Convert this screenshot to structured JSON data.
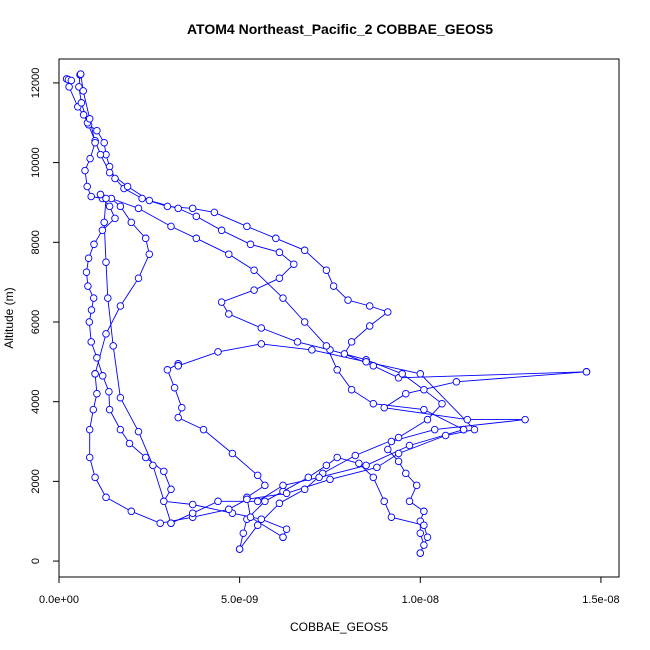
{
  "chart_data": {
    "type": "line",
    "title": "ATOM4 Northeast_Pacific_2 COBBAE_GEOS5",
    "xlabel": "COBBAE_GEOS5",
    "ylabel": "Altitude (m)",
    "xlim": [
      0,
      1.55e-08
    ],
    "ylim": [
      -400,
      12600
    ],
    "x_ticks": [
      0,
      5e-09,
      1e-08,
      1.5e-08
    ],
    "x_tick_labels": [
      "0.0e+00",
      "5.0e-09",
      "1.0e-08",
      "1.5e-08"
    ],
    "y_ticks": [
      0,
      2000,
      4000,
      6000,
      8000,
      10000,
      12000
    ],
    "y_tick_labels": [
      "0",
      "2000",
      "4000",
      "6000",
      "8000",
      "10000",
      "12000"
    ],
    "grid": false,
    "series_color": "#0000ff",
    "marker": "open-circle",
    "series": [
      {
        "points": [
          [
            2.1e-10,
            12100
          ],
          [
            2.6e-10,
            12080
          ],
          [
            3.4e-10,
            12060
          ],
          [
            2.8e-10,
            11900
          ],
          [
            5.2e-10,
            11400
          ],
          [
            6.8e-10,
            11200
          ],
          [
            8.2e-10,
            10950
          ],
          [
            1.05e-09,
            10800
          ],
          [
            1.25e-09,
            10500
          ],
          [
            1.3e-09,
            10200
          ],
          [
            1.4e-09,
            9900
          ],
          [
            1.55e-09,
            9600
          ],
          [
            1.8e-09,
            9350
          ],
          [
            2.3e-09,
            9100
          ],
          [
            3e-09,
            8900
          ],
          [
            3.7e-09,
            8850
          ],
          [
            4.3e-09,
            8750
          ],
          [
            5.2e-09,
            8400
          ],
          [
            6e-09,
            8100
          ],
          [
            6.8e-09,
            7800
          ],
          [
            7.4e-09,
            7300
          ],
          [
            7.6e-09,
            6900
          ],
          [
            8e-09,
            6550
          ],
          [
            8.6e-09,
            6400
          ],
          [
            9.1e-09,
            6250
          ],
          [
            8.6e-09,
            5900
          ],
          [
            8.1e-09,
            5500
          ],
          [
            7.9e-09,
            5200
          ],
          [
            8.7e-09,
            4900
          ],
          [
            9.4e-09,
            4600
          ],
          [
            1.46e-08,
            4750
          ]
        ]
      },
      {
        "points": [
          [
            1.46e-08,
            4750
          ],
          [
            1.1e-08,
            4500
          ],
          [
            9.6e-09,
            4200
          ],
          [
            9e-09,
            3850
          ],
          [
            1.13e-08,
            3550
          ],
          [
            1.29e-08,
            3550
          ],
          [
            1.04e-08,
            3300
          ],
          [
            9.2e-09,
            3000
          ],
          [
            9.1e-09,
            2800
          ],
          [
            9.4e-09,
            2500
          ],
          [
            9.6e-09,
            2200
          ],
          [
            9.9e-09,
            1900
          ],
          [
            9.7e-09,
            1500
          ],
          [
            1.01e-08,
            1250
          ],
          [
            1e-08,
            1000
          ],
          [
            1e-08,
            700
          ],
          [
            1.01e-08,
            400
          ],
          [
            1e-08,
            200
          ]
        ]
      },
      {
        "points": [
          [
            1e-08,
            200
          ],
          [
            1.02e-08,
            600
          ],
          [
            1.01e-08,
            900
          ],
          [
            9.2e-09,
            1100
          ],
          [
            9e-09,
            1500
          ],
          [
            8.7e-09,
            2100
          ],
          [
            8.3e-09,
            2450
          ],
          [
            7.7e-09,
            2600
          ],
          [
            7.4e-09,
            2400
          ],
          [
            6.9e-09,
            2100
          ],
          [
            6.2e-09,
            1750
          ],
          [
            5.7e-09,
            1500
          ],
          [
            5.2e-09,
            1050
          ],
          [
            5.1e-09,
            700
          ],
          [
            5e-09,
            300
          ]
        ]
      },
      {
        "points": [
          [
            5e-09,
            300
          ],
          [
            5.5e-09,
            900
          ],
          [
            6.1e-09,
            1450
          ],
          [
            6.8e-09,
            1800
          ],
          [
            7.3e-09,
            2200
          ],
          [
            8.2e-09,
            2650
          ],
          [
            9.4e-09,
            3100
          ],
          [
            1.02e-08,
            3550
          ],
          [
            1.06e-08,
            3950
          ],
          [
            1.01e-08,
            4300
          ],
          [
            9.5e-09,
            4700
          ],
          [
            8.5e-09,
            5050
          ],
          [
            7.5e-09,
            5300
          ],
          [
            6.6e-09,
            5500
          ],
          [
            5.6e-09,
            5850
          ],
          [
            4.7e-09,
            6200
          ],
          [
            4.5e-09,
            6500
          ],
          [
            5.4e-09,
            6800
          ],
          [
            6.1e-09,
            7100
          ],
          [
            6.5e-09,
            7450
          ],
          [
            6.1e-09,
            7750
          ],
          [
            5.3e-09,
            7950
          ],
          [
            4.5e-09,
            8300
          ],
          [
            3.8e-09,
            8650
          ],
          [
            3.3e-09,
            8850
          ],
          [
            2.5e-09,
            9050
          ],
          [
            1.9e-09,
            9400
          ],
          [
            1.4e-09,
            9750
          ],
          [
            1.15e-09,
            10200
          ],
          [
            1e-09,
            10550
          ],
          [
            7.9e-10,
            11000
          ],
          [
            6.2e-10,
            11500
          ],
          [
            5.5e-10,
            11900
          ],
          [
            5.8e-10,
            12200
          ],
          [
            6e-10,
            12220
          ]
        ]
      },
      {
        "points": [
          [
            6e-10,
            12220
          ],
          [
            6.7e-10,
            11800
          ],
          [
            8.5e-10,
            11100
          ],
          [
            1e-09,
            10500
          ],
          [
            8.6e-10,
            10100
          ],
          [
            7.2e-10,
            9800
          ],
          [
            7.8e-10,
            9400
          ],
          [
            8.9e-10,
            9150
          ],
          [
            1.2e-09,
            9100
          ],
          [
            1.4e-09,
            8900
          ],
          [
            1.55e-09,
            8600
          ],
          [
            1.2e-09,
            8300
          ],
          [
            9.7e-10,
            7950
          ],
          [
            8.2e-10,
            7600
          ],
          [
            7.6e-10,
            7250
          ],
          [
            8e-10,
            6900
          ],
          [
            9.6e-10,
            6600
          ],
          [
            9e-10,
            6300
          ],
          [
            8.4e-10,
            6000
          ],
          [
            8.9e-10,
            5500
          ],
          [
            1.05e-09,
            5100
          ],
          [
            1.21e-09,
            4650
          ],
          [
            1.38e-09,
            4250
          ],
          [
            1.4e-09,
            3800
          ],
          [
            1.7e-09,
            3300
          ],
          [
            1.95e-09,
            2950
          ],
          [
            2.4e-09,
            2600
          ],
          [
            2.9e-09,
            2250
          ],
          [
            3.1e-09,
            1800
          ],
          [
            2.9e-09,
            1500
          ],
          [
            3.7e-09,
            1420
          ],
          [
            4.8e-09,
            1200
          ],
          [
            5.6e-09,
            1050
          ],
          [
            6.3e-09,
            800
          ],
          [
            6.2e-09,
            600
          ]
        ]
      },
      {
        "points": [
          [
            6.2e-09,
            600
          ],
          [
            5.3e-09,
            1100
          ],
          [
            5.2e-09,
            1600
          ],
          [
            5.7e-09,
            1900
          ],
          [
            5.5e-09,
            2150
          ],
          [
            4.8e-09,
            2700
          ],
          [
            4e-09,
            3300
          ],
          [
            3.3e-09,
            3600
          ],
          [
            3.4e-09,
            3850
          ],
          [
            3.2e-09,
            4350
          ],
          [
            3e-09,
            4800
          ],
          [
            3.3e-09,
            4950
          ],
          [
            3.3e-09,
            4900
          ]
        ]
      },
      {
        "points": [
          [
            3.3e-09,
            4900
          ],
          [
            4.4e-09,
            5250
          ],
          [
            5.6e-09,
            5450
          ],
          [
            7e-09,
            5300
          ],
          [
            8.5e-09,
            5000
          ],
          [
            1e-08,
            4700
          ],
          [
            1.15e-08,
            3300
          ],
          [
            1.07e-08,
            3150
          ],
          [
            9.4e-09,
            2700
          ],
          [
            8.8e-09,
            2350
          ],
          [
            7.5e-09,
            2050
          ],
          [
            6.3e-09,
            1700
          ],
          [
            5.2e-09,
            1550
          ],
          [
            4.7e-09,
            1300
          ],
          [
            3.7e-09,
            1100
          ],
          [
            2.8e-09,
            950
          ],
          [
            2e-09,
            1250
          ],
          [
            1.3e-09,
            1600
          ],
          [
            1e-09,
            2100
          ],
          [
            8.5e-10,
            2600
          ],
          [
            8.5e-10,
            3300
          ],
          [
            9.5e-10,
            3800
          ],
          [
            1.05e-09,
            4200
          ],
          [
            1e-09,
            4700
          ]
        ]
      },
      {
        "points": [
          [
            1e-09,
            4700
          ],
          [
            1.3e-09,
            5700
          ],
          [
            1.7e-09,
            6400
          ],
          [
            2.2e-09,
            7100
          ],
          [
            2.5e-09,
            7700
          ],
          [
            2.4e-09,
            8100
          ],
          [
            2e-09,
            8500
          ],
          [
            1.7e-09,
            8900
          ],
          [
            1.45e-09,
            9100
          ],
          [
            1.15e-09,
            9200
          ]
        ]
      },
      {
        "points": [
          [
            1.15e-09,
            9200
          ],
          [
            2.2e-09,
            8850
          ],
          [
            3.1e-09,
            8400
          ],
          [
            3.8e-09,
            8100
          ],
          [
            4.7e-09,
            7700
          ],
          [
            5.4e-09,
            7300
          ],
          [
            6.2e-09,
            6600
          ],
          [
            6.8e-09,
            6000
          ],
          [
            7.4e-09,
            5400
          ],
          [
            7.7e-09,
            4800
          ],
          [
            8.1e-09,
            4300
          ],
          [
            8.7e-09,
            3950
          ],
          [
            1.01e-08,
            3800
          ],
          [
            1.12e-08,
            3300
          ]
        ]
      },
      {
        "points": [
          [
            1.12e-08,
            3300
          ],
          [
            9.7e-09,
            2900
          ],
          [
            8.5e-09,
            2400
          ],
          [
            7.2e-09,
            2100
          ],
          [
            6.2e-09,
            1900
          ],
          [
            5.5e-09,
            1500
          ],
          [
            4.4e-09,
            1500
          ],
          [
            3.7e-09,
            1200
          ],
          [
            3.1e-09,
            950
          ]
        ]
      },
      {
        "points": [
          [
            3.1e-09,
            950
          ],
          [
            2.6e-09,
            2400
          ],
          [
            2.2e-09,
            3250
          ],
          [
            1.7e-09,
            4100
          ],
          [
            1.5e-09,
            5400
          ],
          [
            1.35e-09,
            6600
          ],
          [
            1.3e-09,
            7500
          ],
          [
            1.25e-09,
            8500
          ],
          [
            1.3e-09,
            9100
          ]
        ]
      }
    ]
  }
}
